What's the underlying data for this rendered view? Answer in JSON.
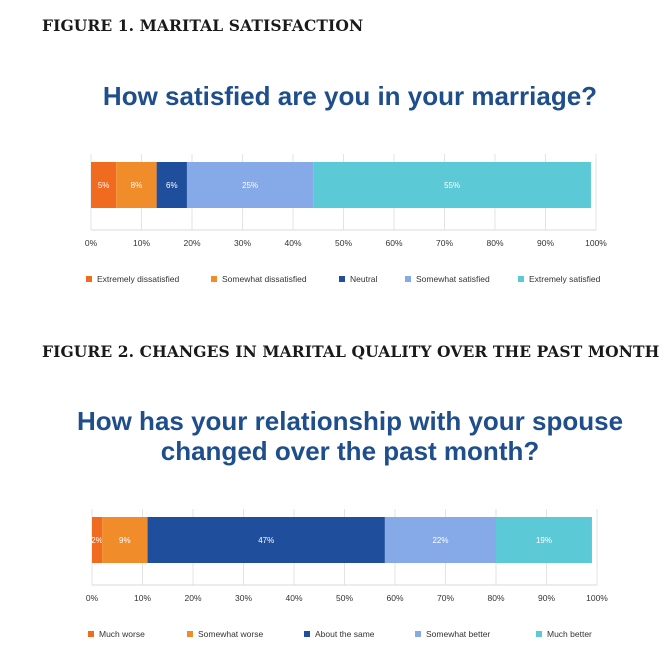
{
  "figures": [
    {
      "heading": "FIGURE 1. MARITAL SATISFACTION",
      "title": "How satisfied are you in your marriage?"
    },
    {
      "heading": "FIGURE 2. CHANGES IN MARITAL QUALITY OVER THE PAST MONTH",
      "title": "How has your relationship with your spouse changed over the past month?"
    }
  ],
  "colors": [
    "#f06a1f",
    "#f08c2a",
    "#1f4e9c",
    "#86a9e8",
    "#5cc9d6"
  ],
  "chart_data": [
    {
      "type": "bar",
      "stacked": true,
      "orientation": "horizontal",
      "title": "How satisfied are you in your marriage?",
      "series": [
        {
          "name": "Extremely dissatisfied",
          "values": [
            5
          ],
          "label": "5%"
        },
        {
          "name": "Somewhat dissatisfied",
          "values": [
            8
          ],
          "label": "8%"
        },
        {
          "name": "Neutral",
          "values": [
            6
          ],
          "label": "6%"
        },
        {
          "name": "Somewhat satisfied",
          "values": [
            25
          ],
          "label": "25%"
        },
        {
          "name": "Extremely satisfied",
          "values": [
            55
          ],
          "label": "55%"
        }
      ],
      "xlim": [
        0,
        100
      ],
      "x_ticks": [
        "0%",
        "10%",
        "20%",
        "30%",
        "40%",
        "50%",
        "60%",
        "70%",
        "80%",
        "90%",
        "100%"
      ],
      "grid": true,
      "legend": "bottom"
    },
    {
      "type": "bar",
      "stacked": true,
      "orientation": "horizontal",
      "title": "How has your relationship with your spouse changed over the past month?",
      "series": [
        {
          "name": "Much worse",
          "values": [
            2
          ],
          "label": "2%"
        },
        {
          "name": "Somewhat worse",
          "values": [
            9
          ],
          "label": "9%"
        },
        {
          "name": "About the same",
          "values": [
            47
          ],
          "label": "47%"
        },
        {
          "name": "Somewhat better",
          "values": [
            22
          ],
          "label": "22%"
        },
        {
          "name": "Much better",
          "values": [
            19
          ],
          "label": "19%"
        }
      ],
      "xlim": [
        0,
        100
      ],
      "x_ticks": [
        "0%",
        "10%",
        "20%",
        "30%",
        "40%",
        "50%",
        "60%",
        "70%",
        "80%",
        "90%",
        "100%"
      ],
      "grid": true,
      "legend": "bottom"
    }
  ]
}
